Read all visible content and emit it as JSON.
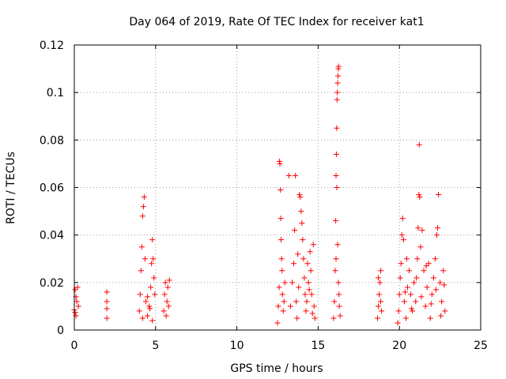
{
  "chart_data": {
    "type": "scatter",
    "title": "Day 064 of 2019, Rate Of TEC Index for receiver kat1",
    "xlabel": "GPS time / hours",
    "ylabel": "ROTI / TECUs",
    "xlim": [
      0,
      25
    ],
    "ylim": [
      0,
      0.12
    ],
    "x_ticks": [
      0,
      5,
      10,
      15,
      20,
      25
    ],
    "x_tick_labels": [
      "0",
      "5",
      "10",
      "15",
      "20",
      "25"
    ],
    "y_ticks": [
      0,
      0.02,
      0.04,
      0.06,
      0.08,
      0.1,
      0.12
    ],
    "y_tick_labels": [
      "0",
      "0.02",
      "0.04",
      "0.06",
      "0.08",
      "0.1",
      "0.12"
    ],
    "grid": true,
    "legend": "none",
    "marker": "+",
    "color": "#ff0000",
    "series": [
      {
        "points": [
          [
            0.0,
            0.0085
          ],
          [
            0.05,
            0.017
          ],
          [
            0.1,
            0.006
          ],
          [
            0.15,
            0.012
          ],
          [
            0.2,
            0.018
          ],
          [
            0.25,
            0.01
          ],
          [
            0.1,
            0.014
          ],
          [
            0.05,
            0.0075
          ],
          [
            2.0,
            0.005
          ],
          [
            2.0,
            0.009
          ],
          [
            2.0,
            0.012
          ],
          [
            2.0,
            0.016
          ],
          [
            4.0,
            0.008
          ],
          [
            4.05,
            0.015
          ],
          [
            4.1,
            0.025
          ],
          [
            4.15,
            0.035
          ],
          [
            4.2,
            0.048
          ],
          [
            4.25,
            0.052
          ],
          [
            4.3,
            0.056
          ],
          [
            4.35,
            0.03
          ],
          [
            4.4,
            0.012
          ],
          [
            4.5,
            0.006
          ],
          [
            4.6,
            0.01
          ],
          [
            4.7,
            0.018
          ],
          [
            4.75,
            0.028
          ],
          [
            4.8,
            0.038
          ],
          [
            4.85,
            0.03
          ],
          [
            4.9,
            0.022
          ],
          [
            4.95,
            0.015
          ],
          [
            4.8,
            0.004
          ],
          [
            4.2,
            0.005
          ],
          [
            4.5,
            0.014
          ],
          [
            4.65,
            0.009
          ],
          [
            5.5,
            0.008
          ],
          [
            5.55,
            0.015
          ],
          [
            5.6,
            0.02
          ],
          [
            5.65,
            0.006
          ],
          [
            5.7,
            0.012
          ],
          [
            5.75,
            0.018
          ],
          [
            5.8,
            0.01
          ],
          [
            5.85,
            0.021
          ],
          [
            12.5,
            0.003
          ],
          [
            12.55,
            0.01
          ],
          [
            12.6,
            0.018
          ],
          [
            12.62,
            0.071
          ],
          [
            12.65,
            0.07
          ],
          [
            12.68,
            0.059
          ],
          [
            12.7,
            0.047
          ],
          [
            12.72,
            0.038
          ],
          [
            12.75,
            0.03
          ],
          [
            12.78,
            0.025
          ],
          [
            12.8,
            0.015
          ],
          [
            12.85,
            0.008
          ],
          [
            12.9,
            0.012
          ],
          [
            12.95,
            0.02
          ],
          [
            13.2,
            0.065
          ],
          [
            13.3,
            0.01
          ],
          [
            13.4,
            0.02
          ],
          [
            13.5,
            0.028
          ],
          [
            13.55,
            0.042
          ],
          [
            13.6,
            0.065
          ],
          [
            13.65,
            0.012
          ],
          [
            13.7,
            0.005
          ],
          [
            13.8,
            0.018
          ],
          [
            13.85,
            0.057
          ],
          [
            13.9,
            0.056
          ],
          [
            13.95,
            0.05
          ],
          [
            14.0,
            0.045
          ],
          [
            14.05,
            0.038
          ],
          [
            14.1,
            0.03
          ],
          [
            14.15,
            0.022
          ],
          [
            14.2,
            0.015
          ],
          [
            14.25,
            0.008
          ],
          [
            14.3,
            0.012
          ],
          [
            14.4,
            0.02
          ],
          [
            14.5,
            0.033
          ],
          [
            14.55,
            0.025
          ],
          [
            14.6,
            0.015
          ],
          [
            14.7,
            0.036
          ],
          [
            14.75,
            0.01
          ],
          [
            14.8,
            0.005
          ],
          [
            13.75,
            0.032
          ],
          [
            14.35,
            0.028
          ],
          [
            14.45,
            0.017
          ],
          [
            14.65,
            0.007
          ],
          [
            15.95,
            0.005
          ],
          [
            16.0,
            0.012
          ],
          [
            16.05,
            0.025
          ],
          [
            16.08,
            0.046
          ],
          [
            16.1,
            0.065
          ],
          [
            16.12,
            0.074
          ],
          [
            16.14,
            0.085
          ],
          [
            16.16,
            0.097
          ],
          [
            16.18,
            0.1
          ],
          [
            16.2,
            0.104
          ],
          [
            16.22,
            0.107
          ],
          [
            16.24,
            0.11
          ],
          [
            16.26,
            0.111
          ],
          [
            16.15,
            0.06
          ],
          [
            16.2,
            0.036
          ],
          [
            16.25,
            0.02
          ],
          [
            16.3,
            0.01
          ],
          [
            16.35,
            0.006
          ],
          [
            16.1,
            0.03
          ],
          [
            16.28,
            0.015
          ],
          [
            18.65,
            0.005
          ],
          [
            18.7,
            0.01
          ],
          [
            18.75,
            0.015
          ],
          [
            18.8,
            0.02
          ],
          [
            18.85,
            0.025
          ],
          [
            18.9,
            0.008
          ],
          [
            18.7,
            0.022
          ],
          [
            18.85,
            0.012
          ],
          [
            19.9,
            0.003
          ],
          [
            19.95,
            0.008
          ],
          [
            20.0,
            0.015
          ],
          [
            20.05,
            0.022
          ],
          [
            20.1,
            0.028
          ],
          [
            20.15,
            0.04
          ],
          [
            20.2,
            0.047
          ],
          [
            20.25,
            0.038
          ],
          [
            20.3,
            0.012
          ],
          [
            20.4,
            0.005
          ],
          [
            20.5,
            0.018
          ],
          [
            20.6,
            0.025
          ],
          [
            20.7,
            0.015
          ],
          [
            20.8,
            0.008
          ],
          [
            20.9,
            0.02
          ],
          [
            21.0,
            0.012
          ],
          [
            21.1,
            0.03
          ],
          [
            21.15,
            0.043
          ],
          [
            21.2,
            0.057
          ],
          [
            21.22,
            0.078
          ],
          [
            21.25,
            0.056
          ],
          [
            21.3,
            0.035
          ],
          [
            21.4,
            0.042
          ],
          [
            21.5,
            0.025
          ],
          [
            21.6,
            0.01
          ],
          [
            21.7,
            0.018
          ],
          [
            21.8,
            0.028
          ],
          [
            21.9,
            0.005
          ],
          [
            22.0,
            0.015
          ],
          [
            22.1,
            0.022
          ],
          [
            22.2,
            0.03
          ],
          [
            22.3,
            0.04
          ],
          [
            22.35,
            0.043
          ],
          [
            22.4,
            0.057
          ],
          [
            22.5,
            0.02
          ],
          [
            22.6,
            0.012
          ],
          [
            22.7,
            0.025
          ],
          [
            22.8,
            0.008
          ],
          [
            20.45,
            0.03
          ],
          [
            20.75,
            0.009
          ],
          [
            21.05,
            0.022
          ],
          [
            21.35,
            0.014
          ],
          [
            21.65,
            0.027
          ],
          [
            21.95,
            0.011
          ],
          [
            22.25,
            0.017
          ],
          [
            22.55,
            0.006
          ],
          [
            22.75,
            0.019
          ],
          [
            20.35,
            0.016
          ]
        ]
      }
    ]
  }
}
